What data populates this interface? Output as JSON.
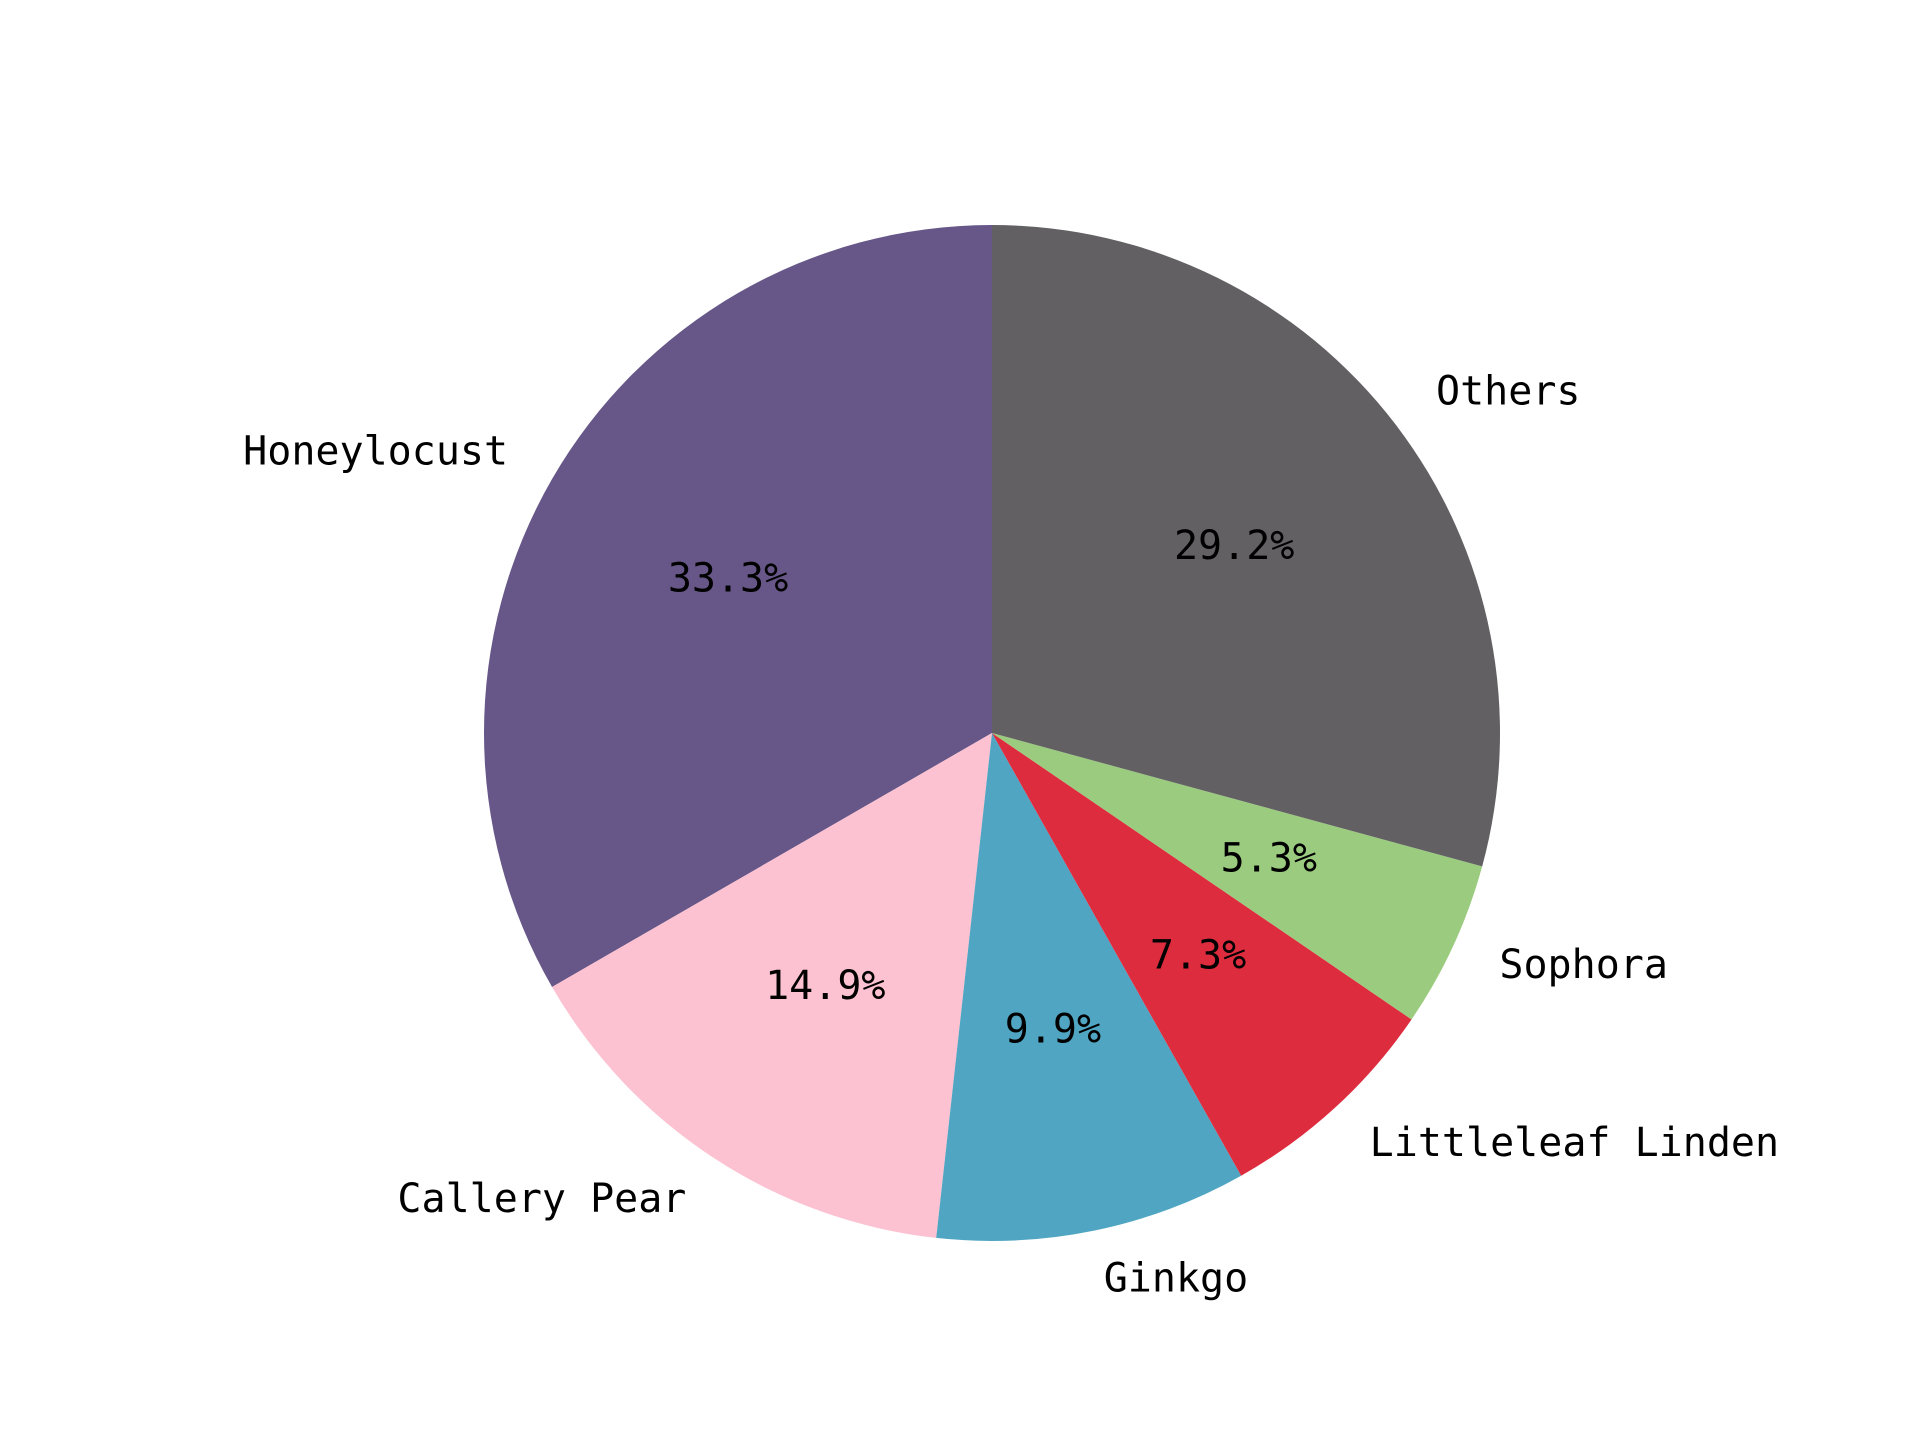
{
  "chart_data": {
    "type": "pie",
    "title": "",
    "start_angle_deg": 90,
    "direction": "counterclockwise",
    "slices": [
      {
        "label": "Honeylocust",
        "value": 33.3,
        "pct_label": "33.3%",
        "color": "#675788"
      },
      {
        "label": "Callery Pear",
        "value": 14.9,
        "pct_label": "14.9%",
        "color": "#fdc2d1"
      },
      {
        "label": "Ginkgo",
        "value": 9.9,
        "pct_label": "9.9%",
        "color": "#50a6c2"
      },
      {
        "label": "Littleleaf Linden",
        "value": 7.3,
        "pct_label": "7.3%",
        "color": "#de2c3f"
      },
      {
        "label": "Sophora",
        "value": 5.3,
        "pct_label": "5.3%",
        "color": "#9bcb7e"
      },
      {
        "label": "Others",
        "value": 29.2,
        "pct_label": "29.2%",
        "color": "#626063"
      }
    ]
  }
}
